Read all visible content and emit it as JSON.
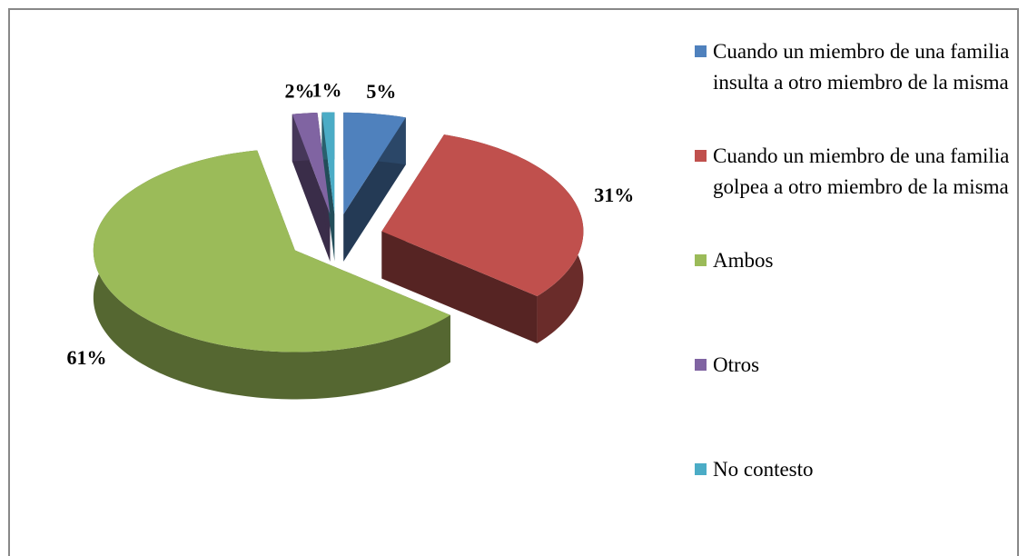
{
  "chart_data": {
    "type": "pie",
    "categories": [
      "Cuando un miembro de una familia insulta a otro miembro de la misma",
      "Cuando un miembro de una familia golpea a otro miembro de la misma",
      "Ambos",
      "Otros",
      "No contesto"
    ],
    "values": [
      5,
      31,
      61,
      2,
      1
    ],
    "value_labels": [
      "5%",
      "31%",
      "61%",
      "2%",
      "1%"
    ],
    "colors": [
      "#4f81bd",
      "#c0504d",
      "#9bbb59",
      "#8064a2",
      "#4bacc6"
    ],
    "legend": "right"
  }
}
